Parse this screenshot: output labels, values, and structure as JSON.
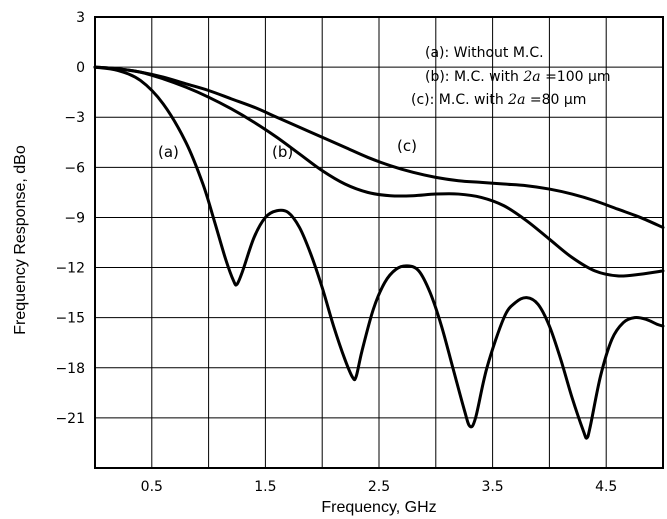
{
  "chart_data": {
    "type": "line",
    "title": "",
    "xlabel": "Frequency, GHz",
    "ylabel": "Frequency Response, dBo",
    "xlim": [
      0,
      5
    ],
    "ylim": [
      -24,
      3
    ],
    "xticks": [
      0.5,
      1.5,
      2.5,
      3.5,
      4.5
    ],
    "xtick_labels": [
      "0.5",
      "1.5",
      "2.5",
      "3.5",
      "4.5"
    ],
    "yticks": [
      3,
      0,
      -3,
      -6,
      -9,
      -12,
      -15,
      -18,
      -21
    ],
    "ytick_labels": [
      "3",
      "0",
      "−3",
      "−6",
      "−9",
      "−12",
      "−15",
      "−18",
      "−21"
    ],
    "grid": true,
    "legend": {
      "placement": "top-right",
      "entries": [
        {
          "prefix": "(a): Without M.C.",
          "italic": "",
          "suffix": ""
        },
        {
          "prefix": "(b): M.C. with ",
          "italic": "2a",
          "suffix": "=100 μm"
        },
        {
          "prefix": "(c): M.C. with ",
          "italic": "2a",
          "suffix": "=80 μm"
        }
      ]
    },
    "series": [
      {
        "label": "(a)",
        "color": "#000000",
        "x": [
          0,
          0.2,
          0.4,
          0.6,
          0.8,
          0.95,
          1.05,
          1.15,
          1.22,
          1.25,
          1.3,
          1.4,
          1.5,
          1.6,
          1.7,
          1.8,
          1.9,
          2.0,
          2.1,
          2.2,
          2.27,
          2.3,
          2.35,
          2.45,
          2.55,
          2.65,
          2.75,
          2.85,
          2.95,
          3.05,
          3.15,
          3.25,
          3.3,
          3.35,
          3.45,
          3.6,
          3.7,
          3.8,
          3.9,
          4.0,
          4.1,
          4.2,
          4.3,
          4.33,
          4.36,
          4.45,
          4.55,
          4.65,
          4.75,
          4.85,
          4.95,
          5.0
        ],
        "y": [
          0,
          -0.2,
          -0.8,
          -2.2,
          -4.5,
          -7.0,
          -9.2,
          -11.5,
          -12.8,
          -13.0,
          -12.2,
          -10.2,
          -9.0,
          -8.6,
          -8.7,
          -9.6,
          -11.2,
          -13.2,
          -15.5,
          -17.5,
          -18.6,
          -18.5,
          -17.0,
          -14.5,
          -12.9,
          -12.1,
          -11.9,
          -12.2,
          -13.5,
          -15.5,
          -18.0,
          -20.5,
          -21.5,
          -21.0,
          -18.0,
          -15.0,
          -14.1,
          -13.8,
          -14.2,
          -15.5,
          -17.5,
          -19.8,
          -21.8,
          -22.2,
          -21.5,
          -18.5,
          -16.3,
          -15.3,
          -15.0,
          -15.1,
          -15.4,
          -15.5
        ]
      },
      {
        "label": "(b)",
        "color": "#000000",
        "x": [
          0,
          0.2,
          0.4,
          0.6,
          0.8,
          1.0,
          1.2,
          1.4,
          1.6,
          1.8,
          2.0,
          2.2,
          2.4,
          2.6,
          2.8,
          3.0,
          3.2,
          3.4,
          3.6,
          3.8,
          4.0,
          4.2,
          4.4,
          4.6,
          4.8,
          5.0
        ],
        "y": [
          0,
          -0.1,
          -0.3,
          -0.7,
          -1.2,
          -1.8,
          -2.5,
          -3.3,
          -4.2,
          -5.2,
          -6.2,
          -7.0,
          -7.5,
          -7.7,
          -7.7,
          -7.6,
          -7.6,
          -7.8,
          -8.3,
          -9.2,
          -10.3,
          -11.4,
          -12.2,
          -12.5,
          -12.4,
          -12.2
        ]
      },
      {
        "label": "(c)",
        "color": "#000000",
        "x": [
          0,
          0.2,
          0.4,
          0.6,
          0.8,
          1.0,
          1.2,
          1.4,
          1.6,
          1.8,
          2.0,
          2.2,
          2.4,
          2.6,
          2.8,
          3.0,
          3.2,
          3.4,
          3.6,
          3.8,
          4.0,
          4.2,
          4.4,
          4.6,
          4.8,
          5.0
        ],
        "y": [
          0,
          -0.1,
          -0.3,
          -0.6,
          -1.0,
          -1.4,
          -1.9,
          -2.4,
          -3.0,
          -3.6,
          -4.2,
          -4.8,
          -5.4,
          -5.9,
          -6.3,
          -6.6,
          -6.8,
          -6.9,
          -7.0,
          -7.1,
          -7.3,
          -7.6,
          -8.0,
          -8.5,
          -9.0,
          -9.6
        ]
      }
    ],
    "annotations": [
      "(a)",
      "(b)",
      "(c)"
    ]
  }
}
